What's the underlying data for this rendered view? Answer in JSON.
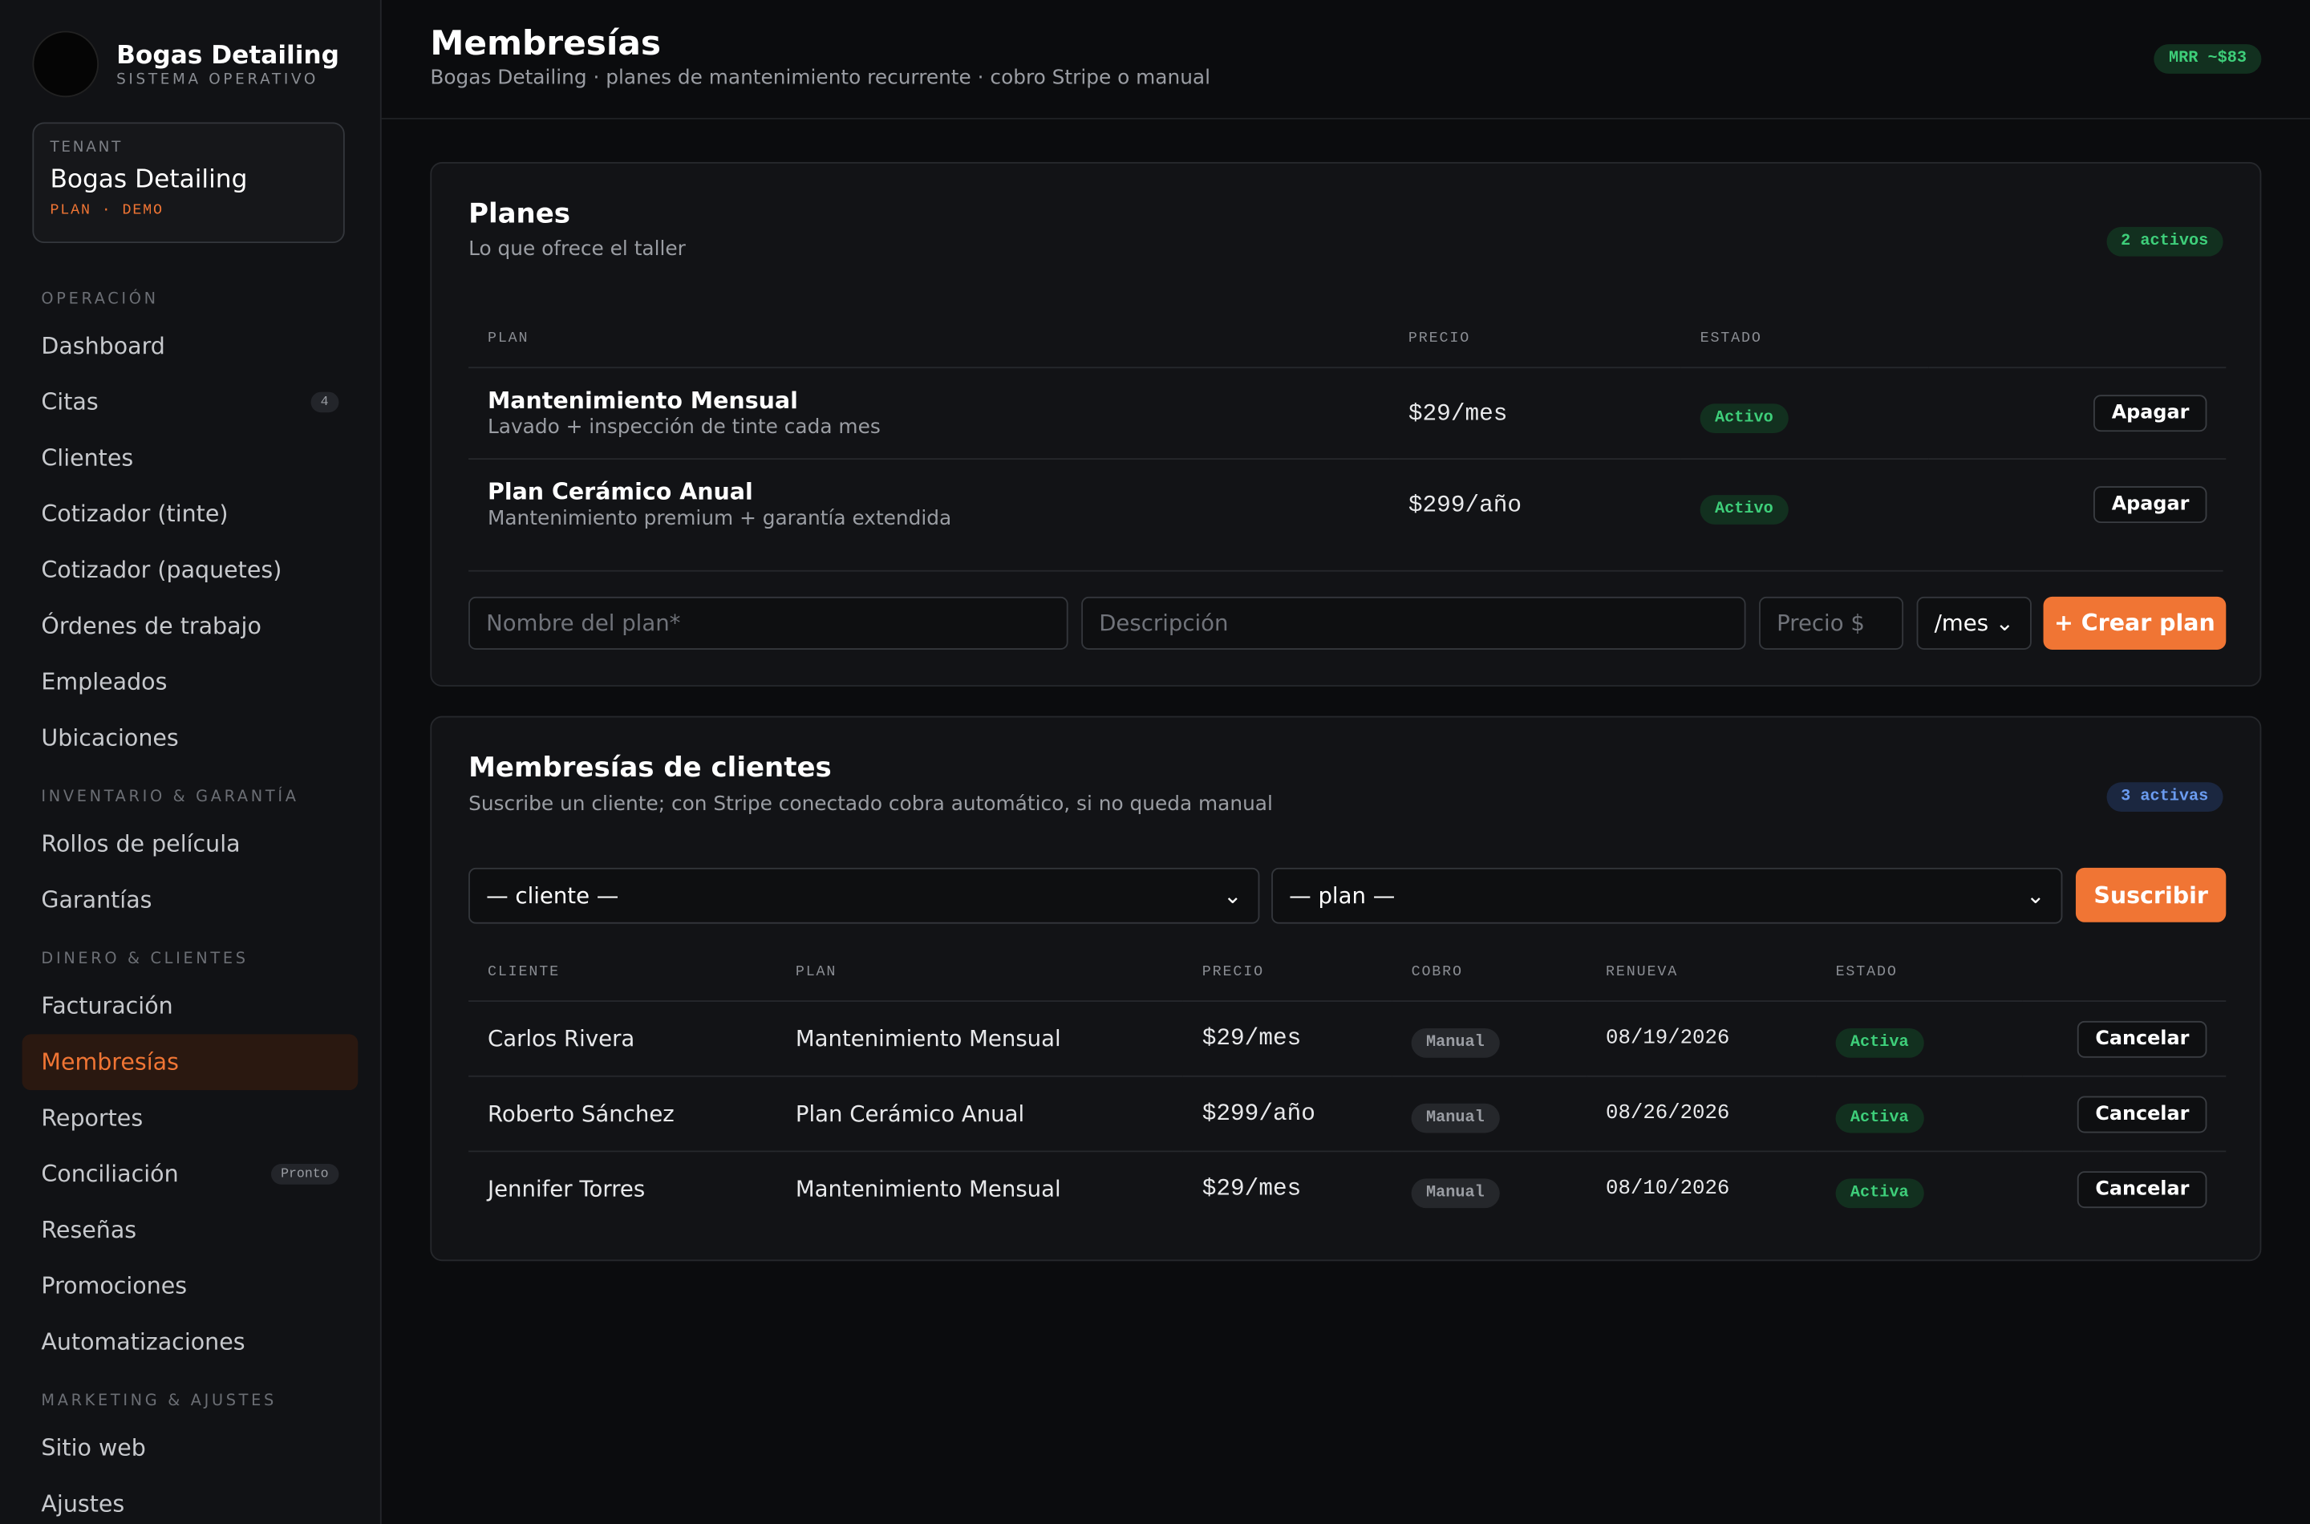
{
  "sidebar": {
    "brand": {
      "name": "Bogas Detailing",
      "subtitle": "SISTEMA OPERATIVO"
    },
    "tenant": {
      "label": "TENANT",
      "name": "Bogas Detailing",
      "plan": "PLAN · DEMO"
    },
    "sections": [
      {
        "title": "OPERACIÓN",
        "items": [
          {
            "label": "Dashboard"
          },
          {
            "label": "Citas",
            "badge": "4"
          },
          {
            "label": "Clientes"
          },
          {
            "label": "Cotizador (tinte)"
          },
          {
            "label": "Cotizador (paquetes)"
          },
          {
            "label": "Órdenes de trabajo"
          },
          {
            "label": "Empleados"
          },
          {
            "label": "Ubicaciones"
          }
        ]
      },
      {
        "title": "INVENTARIO & GARANTÍA",
        "items": [
          {
            "label": "Rollos de película"
          },
          {
            "label": "Garantías"
          }
        ]
      },
      {
        "title": "DINERO & CLIENTES",
        "items": [
          {
            "label": "Facturación"
          },
          {
            "label": "Membresías",
            "active": true
          },
          {
            "label": "Reportes"
          },
          {
            "label": "Conciliación",
            "badge": "Pronto"
          },
          {
            "label": "Reseñas"
          },
          {
            "label": "Promociones"
          },
          {
            "label": "Automatizaciones"
          }
        ]
      },
      {
        "title": "MARKETING & AJUSTES",
        "items": [
          {
            "label": "Sitio web"
          },
          {
            "label": "Ajustes"
          }
        ]
      }
    ]
  },
  "header": {
    "title": "Membresías",
    "subtitle": "Bogas Detailing · planes de mantenimiento recurrente · cobro Stripe o manual",
    "badge": "MRR ~$83"
  },
  "plans": {
    "title": "Planes",
    "subtitle": "Lo que ofrece el taller",
    "badge": "2 activos",
    "columns": [
      "PLAN",
      "PRECIO",
      "ESTADO"
    ],
    "rows": [
      {
        "name": "Mantenimiento Mensual",
        "description": "Lavado + inspección de tinte cada mes",
        "price": "$29/mes",
        "status": "Activo",
        "action": "Apagar"
      },
      {
        "name": "Plan Cerámico Anual",
        "description": "Mantenimiento premium + garantía extendida",
        "price": "$299/año",
        "status": "Activo",
        "action": "Apagar"
      }
    ],
    "form": {
      "name_placeholder": "Nombre del plan*",
      "description_placeholder": "Descripción",
      "price_placeholder": "Precio $",
      "period": "/mes",
      "button": "+ Crear plan"
    }
  },
  "memberships": {
    "title": "Membresías de clientes",
    "subtitle": "Suscribe un cliente; con Stripe conectado cobra automático, si no queda manual",
    "badge": "3 activas",
    "client_select": "— cliente —",
    "plan_select": "— plan —",
    "button": "Suscribir",
    "columns": [
      "CLIENTE",
      "PLAN",
      "PRECIO",
      "COBRO",
      "RENUEVA",
      "ESTADO"
    ],
    "rows": [
      {
        "client": "Carlos Rivera",
        "plan": "Mantenimiento Mensual",
        "price": "$29/mes",
        "billing": "Manual",
        "renews": "08/19/2026",
        "status": "Activa",
        "action": "Cancelar"
      },
      {
        "client": "Roberto Sánchez",
        "plan": "Plan Cerámico Anual",
        "price": "$299/año",
        "billing": "Manual",
        "renews": "08/26/2026",
        "status": "Activa",
        "action": "Cancelar"
      },
      {
        "client": "Jennifer Torres",
        "plan": "Mantenimiento Mensual",
        "price": "$29/mes",
        "billing": "Manual",
        "renews": "08/10/2026",
        "status": "Activa",
        "action": "Cancelar"
      }
    ]
  }
}
